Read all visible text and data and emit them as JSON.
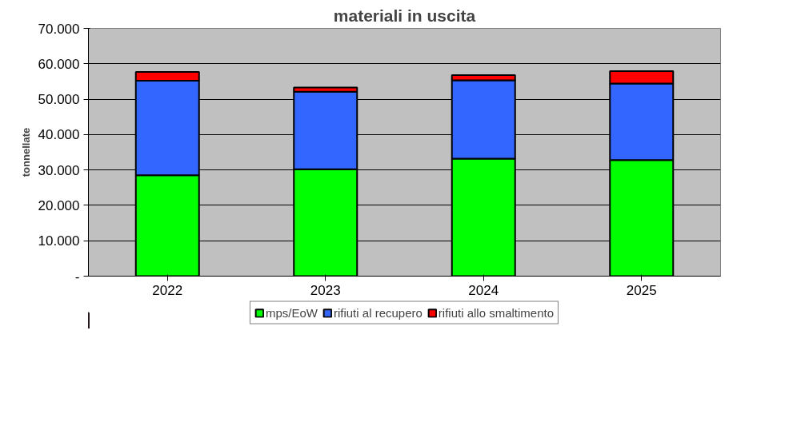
{
  "chart_data": {
    "type": "bar",
    "title": "materiali in uscita",
    "ylabel": "tonnellate",
    "categories": [
      "2022",
      "2023",
      "2024",
      "2025"
    ],
    "stacked": true,
    "series": [
      {
        "name": "mps/EoW",
        "color": "#00ff00",
        "values": [
          28500,
          30200,
          33200,
          32800
        ]
      },
      {
        "name": "rifiuti al recupero",
        "color": "#3366ff",
        "values": [
          26700,
          21900,
          22100,
          21600
        ]
      },
      {
        "name": "rifiuti allo smaltimento",
        "color": "#ff0000",
        "values": [
          2500,
          1200,
          1500,
          3500
        ]
      }
    ],
    "ylim": [
      0,
      70000
    ],
    "yticks": [
      {
        "value": 0,
        "label": "-"
      },
      {
        "value": 10000,
        "label": "10.000"
      },
      {
        "value": 20000,
        "label": "20.000"
      },
      {
        "value": 30000,
        "label": "30.000"
      },
      {
        "value": 40000,
        "label": "40.000"
      },
      {
        "value": 50000,
        "label": "50.000"
      },
      {
        "value": 60000,
        "label": "60.000"
      },
      {
        "value": 70000,
        "label": "70.000"
      }
    ],
    "grid": "y",
    "legend": "bottom"
  }
}
